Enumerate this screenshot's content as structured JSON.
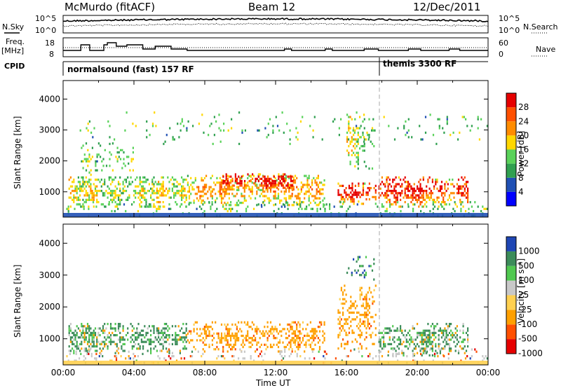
{
  "header": {
    "station": "McMurdo (fitACF)",
    "beam": "Beam 12",
    "date": "12/Dec/2011"
  },
  "left_labels": {
    "nsky": "N.Sky",
    "freq": "Freq.",
    "mhz": "[MHz]",
    "cpid": "CPID"
  },
  "right_labels": {
    "nsearch": "N.Search",
    "nave": "Nave"
  },
  "strip_ticks": {
    "noise_left_top": "10^5",
    "noise_left_bottom": "10^0",
    "noise_right_top": "10^5",
    "noise_right_bottom": "10^0",
    "freq_left_top": "18",
    "freq_left_bottom": "8",
    "nave_right_top": "60",
    "nave_right_bottom": "0"
  },
  "cpid": {
    "program1": "normalsound (fast) 157 RF",
    "program2": "themis 3300 RF"
  },
  "colors": {
    "power": [
      "#0000ff",
      "#2050b4",
      "#30a050",
      "#5ad25a",
      "#ffd700",
      "#ff8c00",
      "#ff5000",
      "#e60000"
    ],
    "velocity": [
      "#e60000",
      "#ff5000",
      "#ffa000",
      "#ffd050",
      "#c8c8c8",
      "#50c850",
      "#3c8c5a",
      "#1e46b4"
    ],
    "ground": "#c8c8c8"
  },
  "chart_data": [
    {
      "type": "heatmap",
      "title": "Power",
      "ylabel": "Slant Range [km]",
      "ylim": [
        180,
        4600
      ],
      "yticks": [
        1000,
        2000,
        3000,
        4000
      ],
      "xlabel": "",
      "colorbar": {
        "label": "Power [dB]",
        "ticks": [
          "28",
          "24",
          "20",
          "16",
          "12",
          "8",
          "4"
        ],
        "range": [
          0,
          32
        ]
      },
      "echo_bands": [
        {
          "t0": 0.3,
          "t1": 7.0,
          "r0": 500,
          "r1": 1500,
          "fill": 0.5,
          "bias": 0.1
        },
        {
          "t0": 1.0,
          "t1": 4.0,
          "r0": 1500,
          "r1": 2600,
          "fill": 0.25,
          "bias": 0.05
        },
        {
          "t0": 7.0,
          "t1": 14.8,
          "r0": 550,
          "r1": 1550,
          "fill": 0.45,
          "bias": 0.2
        },
        {
          "t0": 9.0,
          "t1": 13.0,
          "r0": 1000,
          "r1": 1600,
          "fill": 0.6,
          "bias": 0.4
        },
        {
          "t0": 15.5,
          "t1": 17.7,
          "r0": 600,
          "r1": 1300,
          "fill": 0.5,
          "bias": 0.35
        },
        {
          "t0": 16.0,
          "t1": 17.6,
          "r0": 1700,
          "r1": 3600,
          "fill": 0.3,
          "bias": 0.1
        },
        {
          "t0": 17.8,
          "t1": 22.9,
          "r0": 450,
          "r1": 1500,
          "fill": 0.5,
          "bias": 0.35
        },
        {
          "t0": 0.0,
          "t1": 24.0,
          "r0": 200,
          "r1": 700,
          "fill": 0.15,
          "bias": 0.0
        },
        {
          "t0": 0.5,
          "t1": 24.0,
          "r0": 2500,
          "r1": 3600,
          "fill": 0.05,
          "bias": 0.0
        }
      ]
    },
    {
      "type": "heatmap",
      "title": "Velocity",
      "ylabel": "Slant Range [km]",
      "ylim": [
        180,
        4600
      ],
      "yticks": [
        1000,
        2000,
        3000,
        4000
      ],
      "xlabel": "Time UT",
      "xticks": [
        "00:00",
        "04:00",
        "08:00",
        "12:00",
        "16:00",
        "20:00",
        "00:00"
      ],
      "colorbar": {
        "label": "Velocity [m s⁻¹]",
        "ticks": [
          "1000",
          "500",
          "100",
          "25",
          "-25",
          "-100",
          "-500",
          "-1000"
        ],
        "range": [
          -1200,
          1200
        ]
      },
      "echo_bands": [
        {
          "t0": 0.3,
          "t1": 7.0,
          "r0": 500,
          "r1": 1500,
          "vel": "mixed-green",
          "fill": 0.5
        },
        {
          "t0": 7.0,
          "t1": 14.8,
          "r0": 550,
          "r1": 1550,
          "vel": "negative",
          "fill": 0.45
        },
        {
          "t0": 15.5,
          "t1": 17.7,
          "r0": 600,
          "r1": 2700,
          "vel": "negative",
          "fill": 0.35
        },
        {
          "t0": 16.0,
          "t1": 17.6,
          "r0": 2800,
          "r1": 3600,
          "vel": "positive",
          "fill": 0.3
        },
        {
          "t0": 17.8,
          "t1": 22.9,
          "r0": 450,
          "r1": 1500,
          "vel": "mixed-green",
          "fill": 0.5
        },
        {
          "t0": 0.0,
          "t1": 24.0,
          "r0": 200,
          "r1": 700,
          "vel": "ground",
          "fill": 0.15
        }
      ]
    }
  ]
}
